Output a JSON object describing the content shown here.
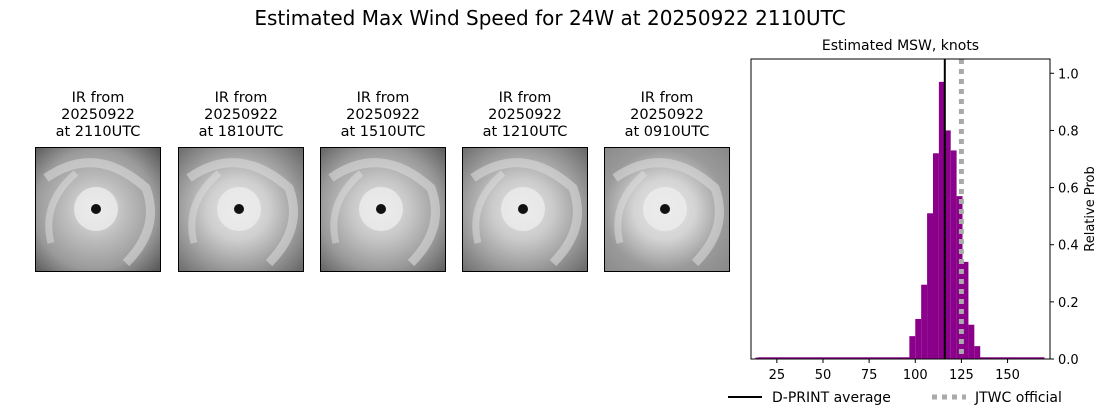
{
  "figure": {
    "title": "Estimated Max Wind Speed for 24W at 20250922 2110UTC"
  },
  "ir_panels": [
    {
      "line1": "IR from",
      "line2": "20250922",
      "line3": "at 2110UTC"
    },
    {
      "line1": "IR from",
      "line2": "20250922",
      "line3": "at 1810UTC"
    },
    {
      "line1": "IR from",
      "line2": "20250922",
      "line3": "at 1510UTC"
    },
    {
      "line1": "IR from",
      "line2": "20250922",
      "line3": "at 1210UTC"
    },
    {
      "line1": "IR from",
      "line2": "20250922",
      "line3": "at 0910UTC"
    }
  ],
  "chart_data": {
    "type": "bar",
    "title": "Estimated MSW, knots",
    "xlabel": "",
    "ylabel": "Relative Prob",
    "xlim": [
      11,
      173
    ],
    "ylim": [
      0,
      1.05
    ],
    "xticks": [
      25,
      50,
      75,
      100,
      125,
      150
    ],
    "yticks": [
      0.0,
      0.2,
      0.4,
      0.6,
      0.8,
      1.0
    ],
    "bar_color": "#8b008b",
    "bin_width": 3.2,
    "bins": [
      {
        "x": 15,
        "y": 0.005
      },
      {
        "x": 50,
        "y": 0.005
      },
      {
        "x": 80,
        "y": 0.005
      },
      {
        "x": 98.4,
        "y": 0.08
      },
      {
        "x": 101.6,
        "y": 0.14
      },
      {
        "x": 104.8,
        "y": 0.26
      },
      {
        "x": 108.0,
        "y": 0.51
      },
      {
        "x": 111.2,
        "y": 0.72
      },
      {
        "x": 114.4,
        "y": 0.97
      },
      {
        "x": 117.6,
        "y": 0.8
      },
      {
        "x": 120.8,
        "y": 0.73
      },
      {
        "x": 124.0,
        "y": 0.57
      },
      {
        "x": 127.2,
        "y": 0.34
      },
      {
        "x": 130.4,
        "y": 0.12
      },
      {
        "x": 133.6,
        "y": 0.045
      },
      {
        "x": 150,
        "y": 0.005
      }
    ],
    "dprint_average": 116,
    "jtwc_official": 125,
    "legend": [
      {
        "label": "D-PRINT average",
        "color": "#000000",
        "style": "solid"
      },
      {
        "label": "JTWC official",
        "color": "#aaaaaa",
        "style": "dotted"
      }
    ],
    "legend_placement": "below"
  }
}
